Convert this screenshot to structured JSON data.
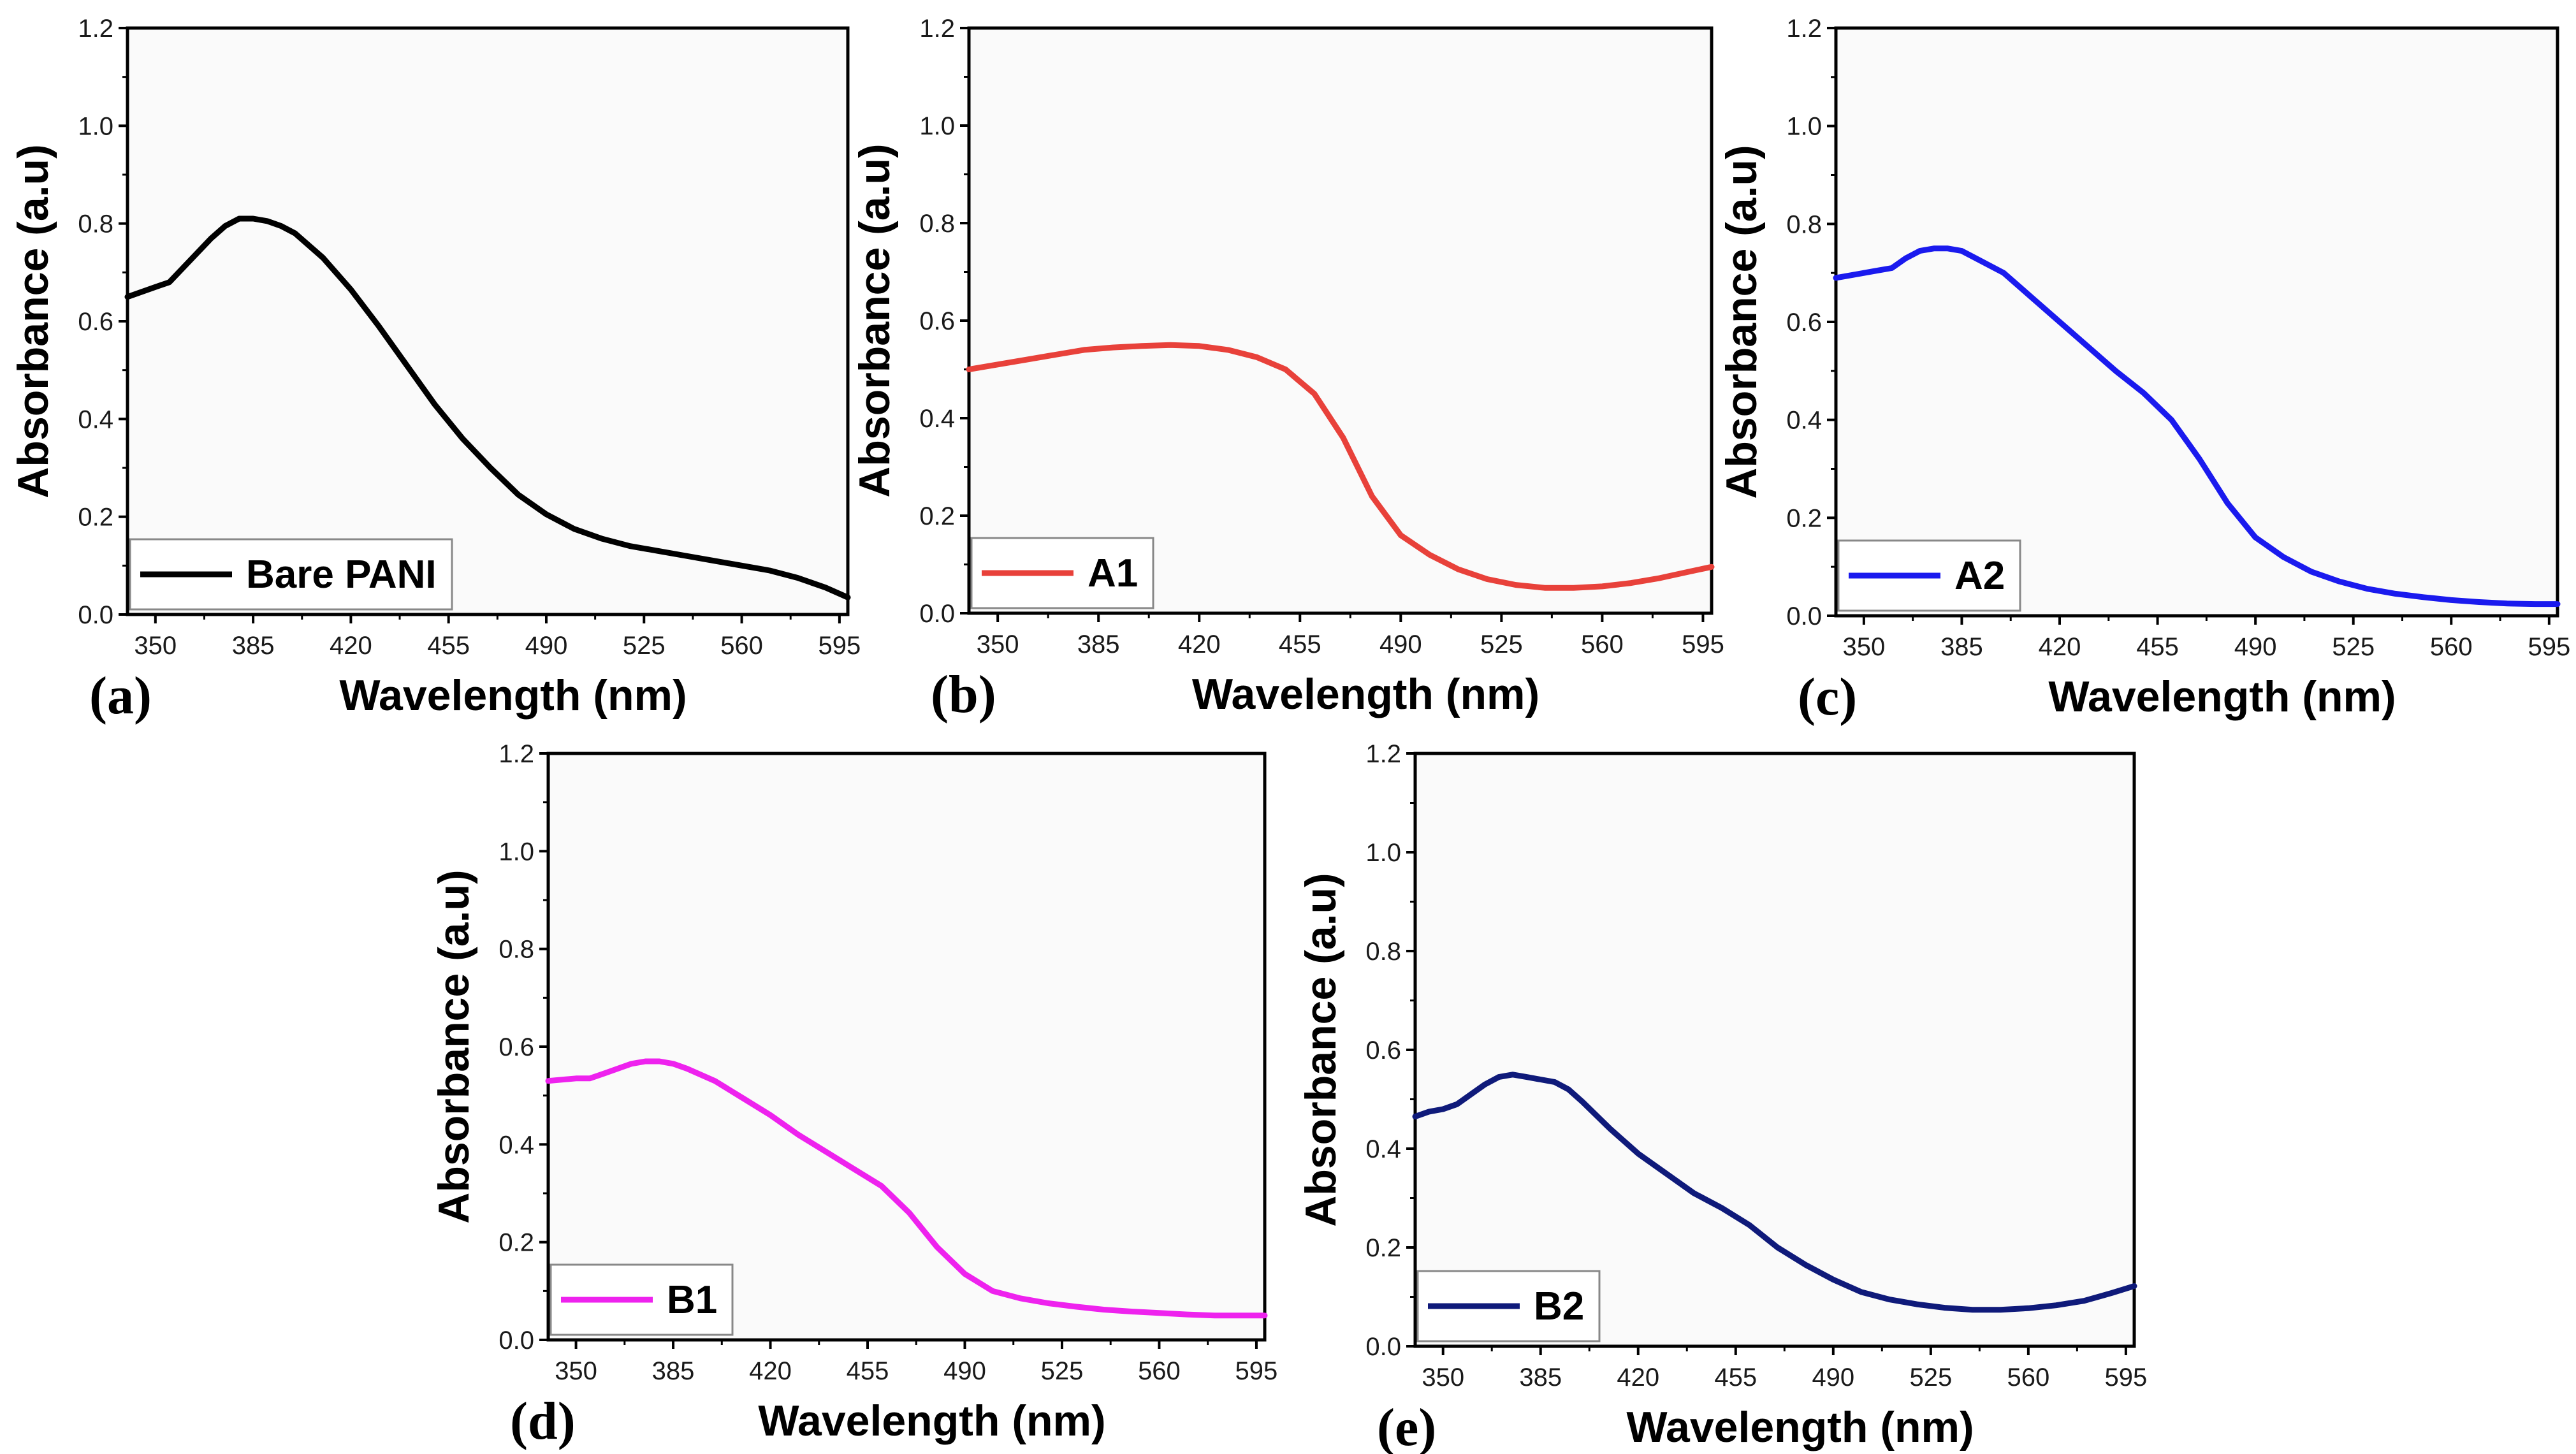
{
  "chart_data": [
    {
      "panel": "(a)",
      "type": "line",
      "series": [
        {
          "name": "Bare PANI",
          "color": "#000000",
          "x": [
            340,
            345,
            350,
            355,
            360,
            365,
            370,
            375,
            380,
            385,
            390,
            395,
            400,
            410,
            420,
            430,
            440,
            450,
            460,
            470,
            480,
            490,
            500,
            510,
            520,
            530,
            540,
            550,
            560,
            570,
            580,
            590,
            598
          ],
          "y": [
            0.65,
            0.66,
            0.67,
            0.68,
            0.71,
            0.74,
            0.77,
            0.795,
            0.81,
            0.81,
            0.805,
            0.795,
            0.78,
            0.73,
            0.665,
            0.59,
            0.51,
            0.43,
            0.36,
            0.3,
            0.245,
            0.205,
            0.175,
            0.155,
            0.14,
            0.13,
            0.12,
            0.11,
            0.1,
            0.09,
            0.075,
            0.055,
            0.035
          ]
        }
      ],
      "xlabel": "Wavelength (nm)",
      "ylabel": "Absorbance (a.u)",
      "xlim": [
        340,
        598
      ],
      "ylim": [
        0.0,
        1.2
      ],
      "xticks": [
        350,
        385,
        420,
        455,
        490,
        525,
        560,
        595
      ],
      "yticks": [
        0.0,
        0.2,
        0.4,
        0.6,
        0.8,
        1.0,
        1.2
      ],
      "legend_position": "bottom-left"
    },
    {
      "panel": "(b)",
      "type": "line",
      "series": [
        {
          "name": "A1",
          "color": "#e8413a",
          "x": [
            340,
            350,
            360,
            370,
            380,
            390,
            400,
            410,
            420,
            430,
            440,
            450,
            460,
            470,
            480,
            490,
            500,
            510,
            520,
            530,
            540,
            550,
            560,
            570,
            580,
            590,
            598
          ],
          "y": [
            0.5,
            0.51,
            0.52,
            0.53,
            0.54,
            0.545,
            0.548,
            0.55,
            0.548,
            0.54,
            0.525,
            0.5,
            0.45,
            0.36,
            0.24,
            0.16,
            0.12,
            0.09,
            0.07,
            0.058,
            0.052,
            0.052,
            0.055,
            0.062,
            0.072,
            0.085,
            0.095
          ]
        }
      ],
      "xlabel": "Wavelength (nm)",
      "ylabel": "Absorbance (a.u)",
      "xlim": [
        340,
        598
      ],
      "ylim": [
        0.0,
        1.2
      ],
      "xticks": [
        350,
        385,
        420,
        455,
        490,
        525,
        560,
        595
      ],
      "yticks": [
        0.0,
        0.2,
        0.4,
        0.6,
        0.8,
        1.0,
        1.2
      ],
      "legend_position": "bottom-left"
    },
    {
      "panel": "(c)",
      "type": "line",
      "series": [
        {
          "name": "A2",
          "color": "#1a1aee",
          "x": [
            340,
            350,
            355,
            360,
            365,
            370,
            375,
            380,
            385,
            390,
            400,
            410,
            420,
            430,
            440,
            450,
            460,
            470,
            480,
            490,
            500,
            510,
            520,
            530,
            540,
            550,
            560,
            570,
            580,
            590,
            598
          ],
          "y": [
            0.69,
            0.7,
            0.705,
            0.71,
            0.73,
            0.745,
            0.75,
            0.75,
            0.745,
            0.73,
            0.7,
            0.65,
            0.6,
            0.55,
            0.5,
            0.455,
            0.4,
            0.32,
            0.23,
            0.16,
            0.12,
            0.09,
            0.07,
            0.055,
            0.045,
            0.038,
            0.032,
            0.028,
            0.025,
            0.024,
            0.024
          ]
        }
      ],
      "xlabel": "Wavelength (nm)",
      "ylabel": "Absorbance (a.u)",
      "xlim": [
        340,
        598
      ],
      "ylim": [
        0.0,
        1.2
      ],
      "xticks": [
        350,
        385,
        420,
        455,
        490,
        525,
        560,
        595
      ],
      "yticks": [
        0.0,
        0.2,
        0.4,
        0.6,
        0.8,
        1.0,
        1.2
      ],
      "legend_position": "bottom-left"
    },
    {
      "panel": "(d)",
      "type": "line",
      "series": [
        {
          "name": "B1",
          "color": "#ee22ee",
          "x": [
            340,
            350,
            355,
            360,
            365,
            370,
            375,
            380,
            385,
            390,
            400,
            410,
            420,
            430,
            440,
            450,
            460,
            470,
            480,
            490,
            500,
            510,
            520,
            530,
            540,
            550,
            560,
            570,
            580,
            590,
            598
          ],
          "y": [
            0.53,
            0.535,
            0.535,
            0.545,
            0.555,
            0.565,
            0.57,
            0.57,
            0.565,
            0.555,
            0.53,
            0.495,
            0.46,
            0.42,
            0.385,
            0.35,
            0.315,
            0.26,
            0.19,
            0.135,
            0.1,
            0.085,
            0.075,
            0.068,
            0.062,
            0.058,
            0.055,
            0.052,
            0.05,
            0.05,
            0.05
          ]
        }
      ],
      "xlabel": "Wavelength (nm)",
      "ylabel": "Absorbance (a.u)",
      "xlim": [
        340,
        598
      ],
      "ylim": [
        0.0,
        1.2
      ],
      "xticks": [
        350,
        385,
        420,
        455,
        490,
        525,
        560,
        595
      ],
      "yticks": [
        0.0,
        0.2,
        0.4,
        0.6,
        0.8,
        1.0,
        1.2
      ],
      "legend_position": "bottom-left"
    },
    {
      "panel": "(e)",
      "type": "line",
      "series": [
        {
          "name": "B2",
          "color": "#0f1a7a",
          "x": [
            340,
            345,
            350,
            355,
            360,
            365,
            370,
            375,
            380,
            385,
            390,
            395,
            400,
            410,
            420,
            430,
            440,
            450,
            460,
            470,
            480,
            490,
            500,
            510,
            520,
            530,
            540,
            550,
            560,
            570,
            580,
            590,
            598
          ],
          "y": [
            0.465,
            0.475,
            0.48,
            0.49,
            0.51,
            0.53,
            0.545,
            0.55,
            0.545,
            0.54,
            0.535,
            0.52,
            0.495,
            0.44,
            0.39,
            0.35,
            0.31,
            0.28,
            0.245,
            0.2,
            0.165,
            0.135,
            0.11,
            0.095,
            0.085,
            0.078,
            0.074,
            0.074,
            0.077,
            0.083,
            0.092,
            0.108,
            0.122
          ]
        }
      ],
      "xlabel": "Wavelength (nm)",
      "ylabel": "Absorbance (a.u)",
      "xlim": [
        340,
        598
      ],
      "ylim": [
        0.0,
        1.2
      ],
      "xticks": [
        350,
        385,
        420,
        455,
        490,
        525,
        560,
        595
      ],
      "yticks": [
        0.0,
        0.2,
        0.4,
        0.6,
        0.8,
        1.0,
        1.2
      ],
      "legend_position": "bottom-left"
    }
  ]
}
